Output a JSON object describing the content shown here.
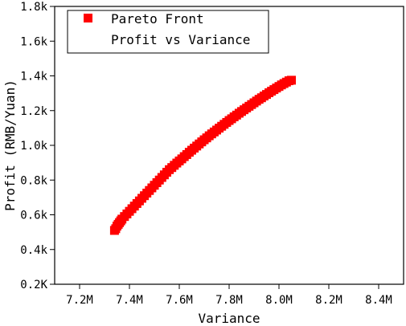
{
  "chart_data": {
    "type": "scatter",
    "xlabel": "Variance",
    "ylabel": "Profit (RMB/Yuan)",
    "xlim": [
      7.1,
      8.5
    ],
    "ylim": [
      0.2,
      1.8
    ],
    "x_ticks": [
      {
        "value": 7.2,
        "label": "7.2M"
      },
      {
        "value": 7.4,
        "label": "7.4M"
      },
      {
        "value": 7.6,
        "label": "7.6M"
      },
      {
        "value": 7.8,
        "label": "7.8M"
      },
      {
        "value": 8.0,
        "label": "8.0M"
      },
      {
        "value": 8.2,
        "label": "8.2M"
      },
      {
        "value": 8.4,
        "label": "8.4M"
      }
    ],
    "y_ticks": [
      {
        "value": 0.2,
        "label": "0.2K"
      },
      {
        "value": 0.4,
        "label": "0.4k"
      },
      {
        "value": 0.6,
        "label": "0.6k"
      },
      {
        "value": 0.8,
        "label": "0.8k"
      },
      {
        "value": 1.0,
        "label": "1.0k"
      },
      {
        "value": 1.2,
        "label": "1.2k"
      },
      {
        "value": 1.4,
        "label": "1.4k"
      },
      {
        "value": 1.6,
        "label": "1.6k"
      },
      {
        "value": 1.8,
        "label": "1.8k"
      }
    ],
    "legend": {
      "placement": "top-left",
      "title": "Profit vs Variance"
    },
    "grid": false,
    "series": [
      {
        "name": "Pareto Front",
        "color": "#ff0000",
        "marker": "square",
        "points": [
          [
            7.34,
            0.51
          ],
          [
            7.345,
            0.52
          ],
          [
            7.35,
            0.535
          ],
          [
            7.355,
            0.545
          ],
          [
            7.36,
            0.555
          ],
          [
            7.365,
            0.565
          ],
          [
            7.37,
            0.575
          ],
          [
            7.38,
            0.59
          ],
          [
            7.39,
            0.605
          ],
          [
            7.4,
            0.62
          ],
          [
            7.41,
            0.635
          ],
          [
            7.42,
            0.65
          ],
          [
            7.43,
            0.665
          ],
          [
            7.44,
            0.68
          ],
          [
            7.45,
            0.695
          ],
          [
            7.46,
            0.71
          ],
          [
            7.47,
            0.725
          ],
          [
            7.48,
            0.74
          ],
          [
            7.49,
            0.755
          ],
          [
            7.5,
            0.77
          ],
          [
            7.51,
            0.785
          ],
          [
            7.52,
            0.8
          ],
          [
            7.53,
            0.815
          ],
          [
            7.54,
            0.83
          ],
          [
            7.55,
            0.845
          ],
          [
            7.56,
            0.86
          ],
          [
            7.57,
            0.872
          ],
          [
            7.58,
            0.885
          ],
          [
            7.59,
            0.898
          ],
          [
            7.6,
            0.91
          ],
          [
            7.61,
            0.922
          ],
          [
            7.62,
            0.935
          ],
          [
            7.63,
            0.947
          ],
          [
            7.64,
            0.96
          ],
          [
            7.65,
            0.972
          ],
          [
            7.66,
            0.984
          ],
          [
            7.67,
            0.996
          ],
          [
            7.68,
            1.008
          ],
          [
            7.69,
            1.02
          ],
          [
            7.7,
            1.032
          ],
          [
            7.71,
            1.043
          ],
          [
            7.72,
            1.055
          ],
          [
            7.73,
            1.066
          ],
          [
            7.74,
            1.077
          ],
          [
            7.75,
            1.088
          ],
          [
            7.76,
            1.099
          ],
          [
            7.77,
            1.11
          ],
          [
            7.78,
            1.121
          ],
          [
            7.79,
            1.132
          ],
          [
            7.8,
            1.143
          ],
          [
            7.81,
            1.153
          ],
          [
            7.82,
            1.164
          ],
          [
            7.83,
            1.174
          ],
          [
            7.84,
            1.185
          ],
          [
            7.85,
            1.195
          ],
          [
            7.86,
            1.205
          ],
          [
            7.87,
            1.215
          ],
          [
            7.88,
            1.225
          ],
          [
            7.89,
            1.235
          ],
          [
            7.9,
            1.245
          ],
          [
            7.91,
            1.255
          ],
          [
            7.92,
            1.265
          ],
          [
            7.93,
            1.274
          ],
          [
            7.94,
            1.284
          ],
          [
            7.95,
            1.293
          ],
          [
            7.96,
            1.303
          ],
          [
            7.97,
            1.312
          ],
          [
            7.98,
            1.321
          ],
          [
            7.99,
            1.33
          ],
          [
            8.0,
            1.339
          ],
          [
            8.01,
            1.348
          ],
          [
            8.02,
            1.356
          ],
          [
            8.03,
            1.364
          ],
          [
            8.04,
            1.372
          ],
          [
            8.05,
            1.375
          ]
        ]
      }
    ]
  }
}
